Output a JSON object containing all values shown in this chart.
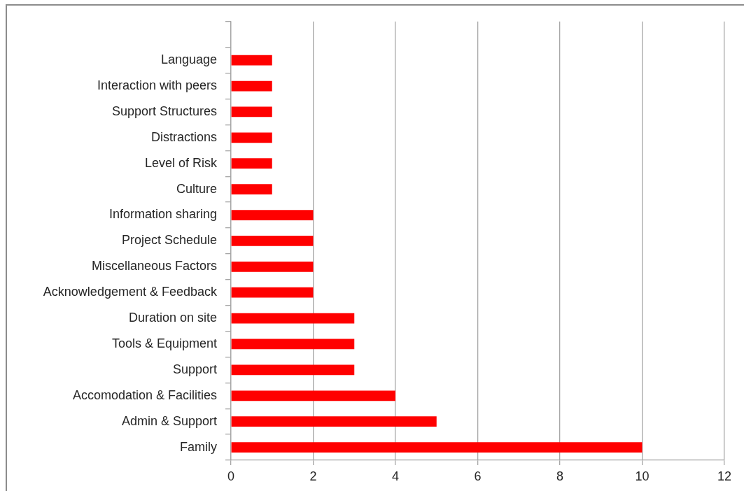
{
  "chart_data": {
    "type": "bar",
    "orientation": "horizontal",
    "categories": [
      null,
      "Language",
      "Interaction with peers",
      "Support Structures",
      "Distractions",
      "Level of Risk",
      "Culture",
      "Information sharing",
      "Project Schedule",
      "Miscellaneous Factors",
      "Acknowledgement & Feedback",
      "Duration on site",
      "Tools & Equipment",
      "Support",
      "Accomodation & Facilities",
      "Admin & Support",
      "Family"
    ],
    "values": [
      null,
      1,
      1,
      1,
      1,
      1,
      1,
      2,
      2,
      2,
      2,
      3,
      3,
      3,
      4,
      5,
      10
    ],
    "color": "#ff0000",
    "xlim": [
      0,
      12
    ],
    "xticks": [
      0,
      2,
      4,
      6,
      8,
      10,
      12
    ],
    "grid": "x"
  }
}
